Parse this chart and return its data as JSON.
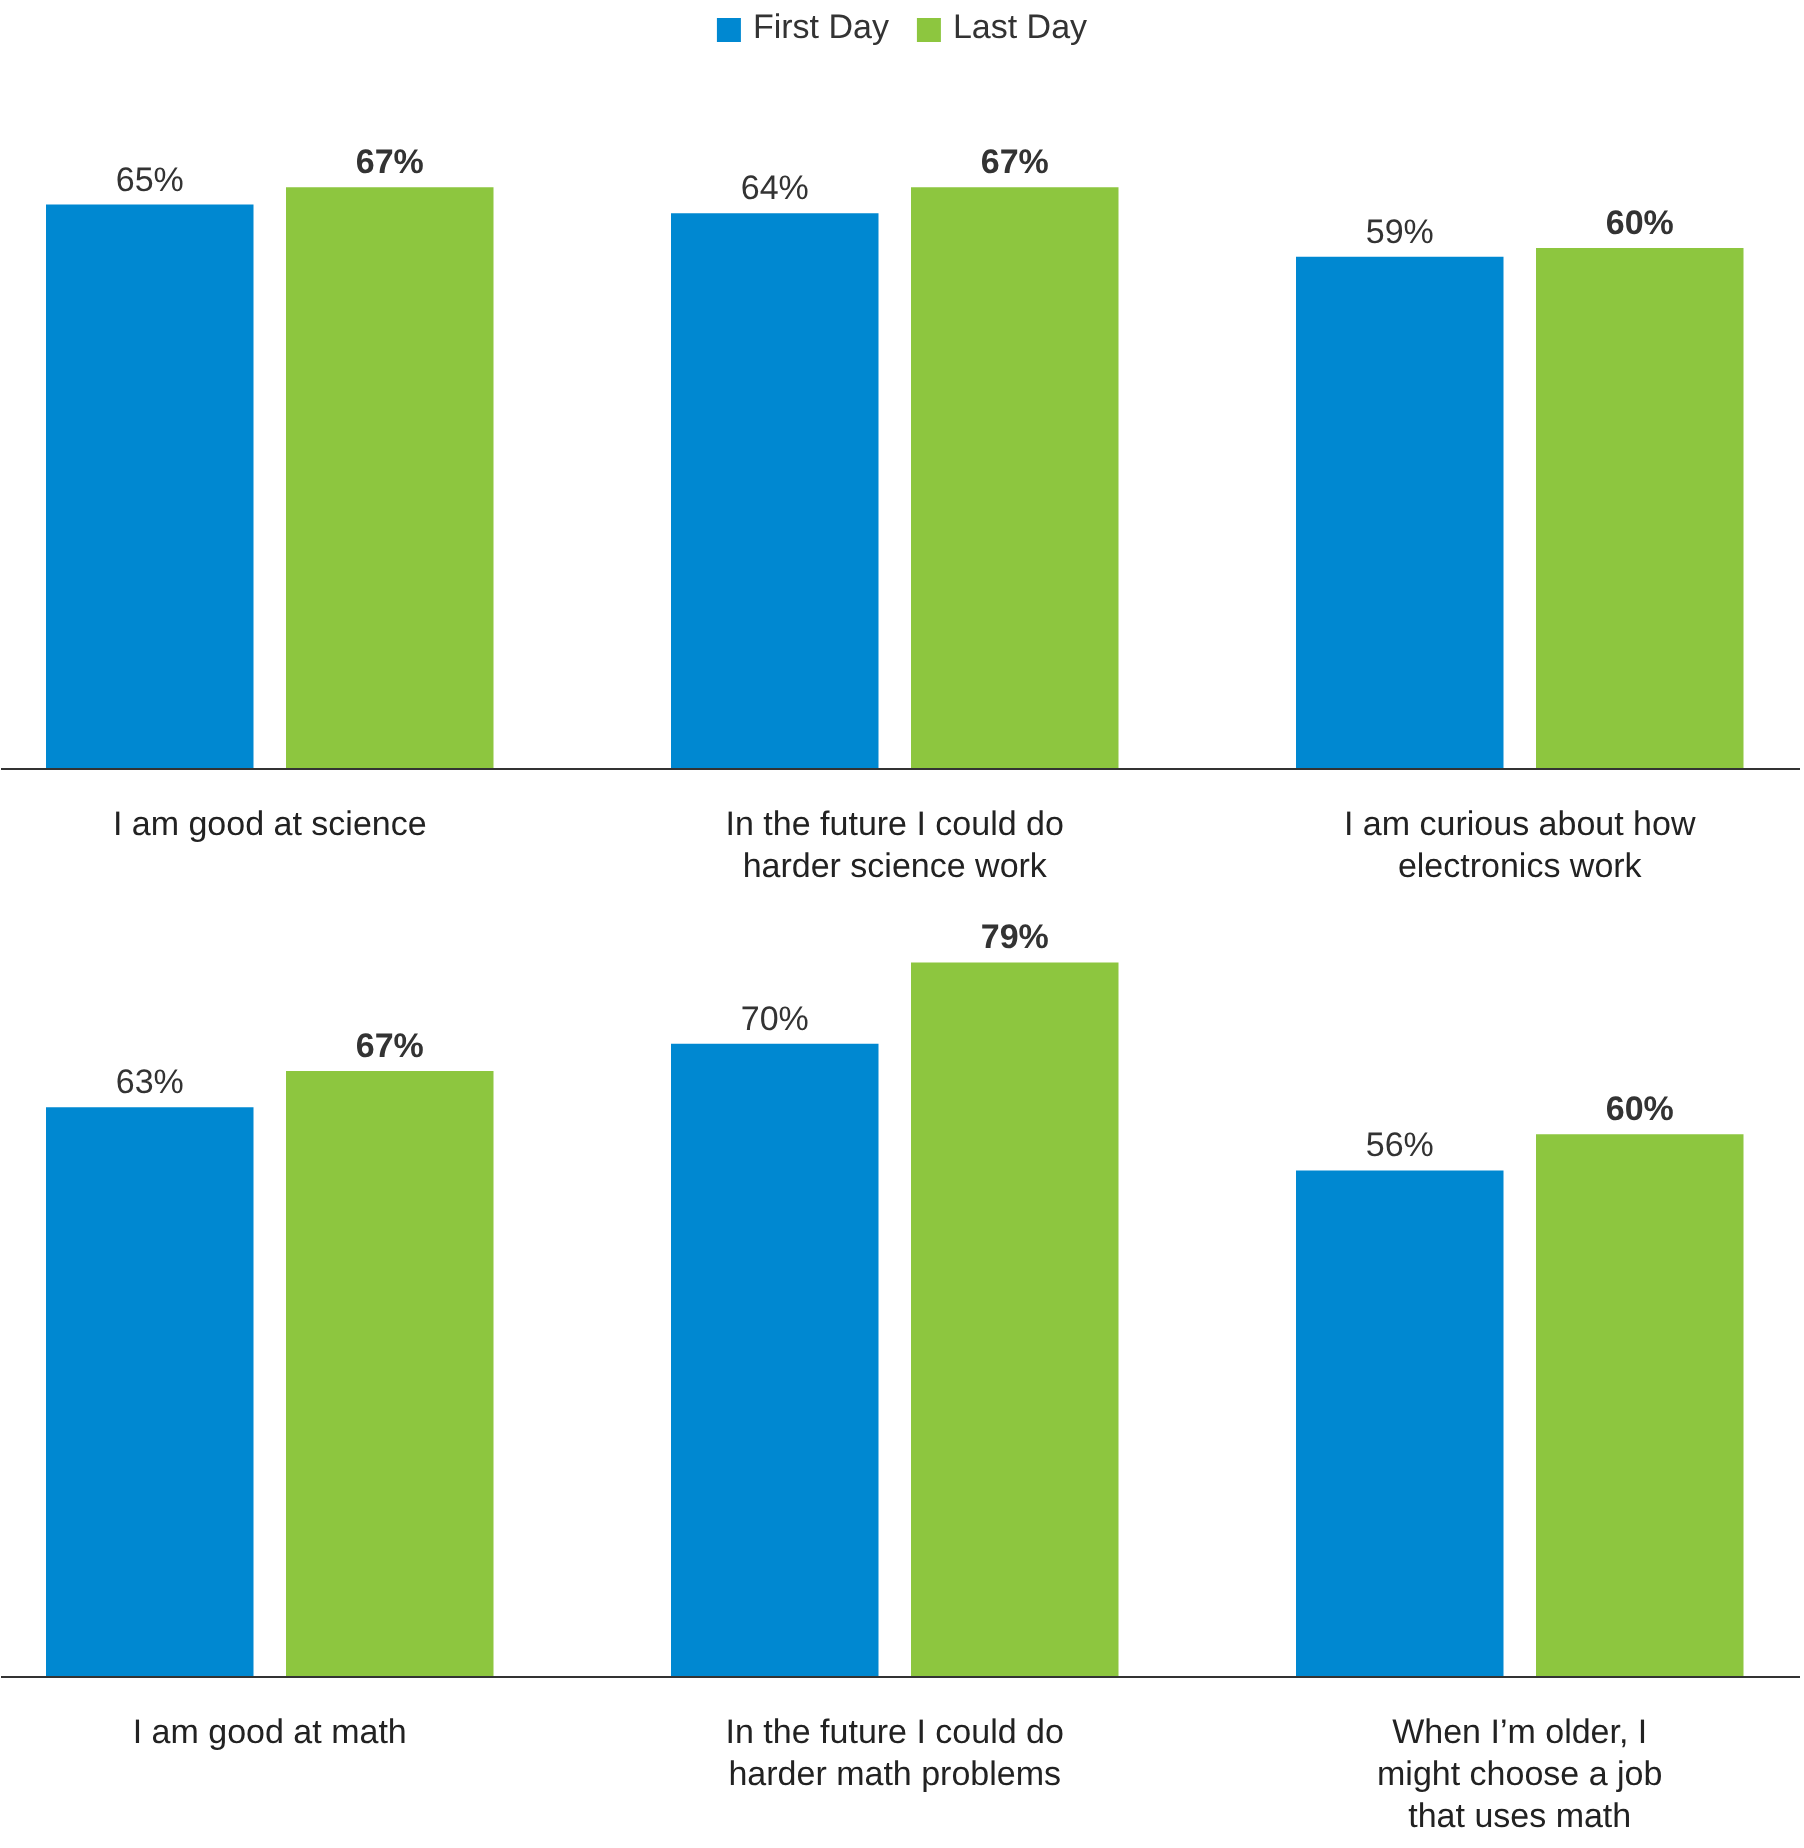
{
  "chart_data": [
    {
      "type": "bar",
      "categories": [
        "I am good at science",
        "In the future I could do\nharder science work",
        "I am curious about how\nelectronics work"
      ],
      "series": [
        {
          "name": "First Day",
          "color": "#0088d1",
          "values": [
            65,
            64,
            59
          ],
          "value_labels": [
            "65%",
            "64%",
            "59%"
          ]
        },
        {
          "name": "Last Day",
          "color": "#8dc63f",
          "values": [
            67,
            67,
            60
          ],
          "value_labels": [
            "67%",
            "67%",
            "60%"
          ]
        }
      ],
      "legend": "top",
      "tick_labels": "x",
      "grid": false
    },
    {
      "type": "bar",
      "categories": [
        "I am good at math",
        "In the future I could do\nharder math problems",
        "When I’m older, I\nmight choose a job\nthat uses math"
      ],
      "series": [
        {
          "color": "#0088d1",
          "values": [
            63,
            70,
            56
          ],
          "value_labels": [
            "63%",
            "70%",
            "56%"
          ]
        },
        {
          "color": "#8dc63f",
          "values": [
            67,
            79,
            60
          ],
          "value_labels": [
            "67%",
            "79%",
            "60%"
          ]
        }
      ],
      "tick_labels": "x",
      "grid": false
    }
  ]
}
